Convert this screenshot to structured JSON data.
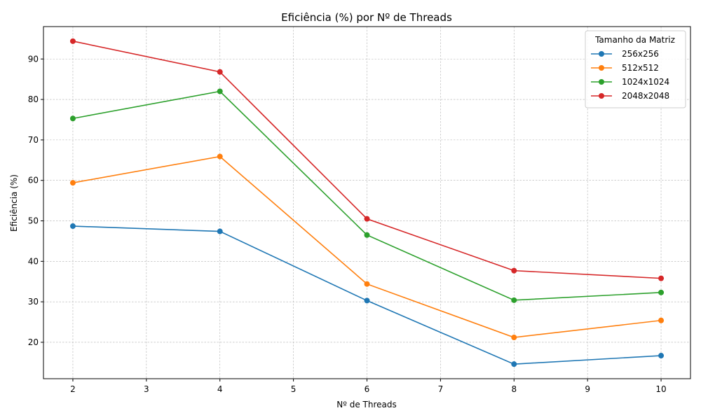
{
  "chart_data": {
    "type": "line",
    "title": "Eficiência (%) por Nº de Threads",
    "xlabel": "Nº de Threads",
    "ylabel": "Eficiência (%)",
    "x": [
      2,
      4,
      6,
      8,
      10
    ],
    "xlim": [
      1.6,
      10.4
    ],
    "ylim": [
      11,
      98
    ],
    "xticks": [
      2,
      3,
      4,
      5,
      6,
      7,
      8,
      9,
      10
    ],
    "yticks": [
      20,
      30,
      40,
      50,
      60,
      70,
      80,
      90
    ],
    "grid": true,
    "legend": {
      "title": "Tamanho da Matriz",
      "placement": "top-right"
    },
    "series": [
      {
        "name": "256x256",
        "color": "#1f77b4",
        "values": [
          48.7,
          47.4,
          30.3,
          14.6,
          16.7
        ]
      },
      {
        "name": "512x512",
        "color": "#ff7f0e",
        "values": [
          59.4,
          65.9,
          34.4,
          21.2,
          25.4
        ]
      },
      {
        "name": "1024x1024",
        "color": "#2ca02c",
        "values": [
          75.3,
          82.0,
          46.5,
          30.4,
          32.3
        ]
      },
      {
        "name": "2048x2048",
        "color": "#d62728",
        "values": [
          94.4,
          86.8,
          50.5,
          37.7,
          35.8
        ]
      }
    ]
  }
}
